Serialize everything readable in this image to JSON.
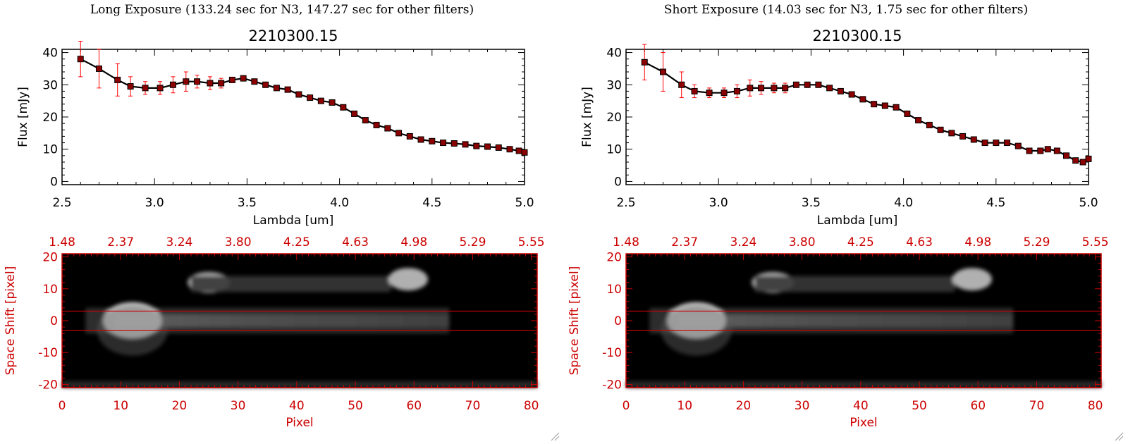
{
  "panels": [
    {
      "id": "left",
      "exposure_title": "Long Exposure (133.24 sec for N3, 147.27 sec for other filters)",
      "chart_data": {
        "type": "line",
        "title": "2210300.15",
        "xlabel": "Lambda [um]",
        "ylabel": "Flux [mJy]",
        "xlim": [
          2.5,
          5.0
        ],
        "ylim": [
          -1,
          41
        ],
        "xticks": [
          "2.5",
          "3.0",
          "3.5",
          "4.0",
          "4.5",
          "5.0"
        ],
        "yticks": [
          "0",
          "10",
          "20",
          "30",
          "40"
        ],
        "x": [
          2.6,
          2.7,
          2.8,
          2.87,
          2.95,
          3.03,
          3.1,
          3.17,
          3.23,
          3.3,
          3.36,
          3.42,
          3.48,
          3.54,
          3.6,
          3.66,
          3.72,
          3.78,
          3.84,
          3.9,
          3.96,
          4.02,
          4.08,
          4.14,
          4.2,
          4.26,
          4.32,
          4.38,
          4.44,
          4.5,
          4.56,
          4.62,
          4.68,
          4.74,
          4.8,
          4.86,
          4.92,
          4.97,
          5.0
        ],
        "y": [
          38,
          35,
          31.5,
          29.5,
          29,
          29,
          30,
          31,
          31,
          30.5,
          30.5,
          31.5,
          32,
          31,
          30,
          29,
          28.5,
          27,
          26,
          25,
          24.5,
          23,
          21,
          19,
          17.5,
          16.5,
          15,
          14,
          13,
          12.5,
          12,
          11.8,
          11.5,
          11,
          10.8,
          10.5,
          10,
          9.5,
          9
        ],
        "yerr": [
          5.5,
          6,
          5,
          3,
          2,
          2,
          2.5,
          3,
          2,
          2,
          1.5,
          0,
          0,
          0,
          0,
          0,
          0,
          0,
          0,
          0,
          0,
          0,
          0,
          0,
          0,
          0,
          0,
          0,
          0,
          0,
          0,
          0,
          0,
          0,
          0,
          0,
          0,
          0,
          0
        ],
        "error_color": "#ff0000",
        "marker_color": "#8b0000",
        "line_color": "#000000"
      },
      "image": {
        "top_axis_ticks": [
          "1.48",
          "2.37",
          "3.24",
          "3.80",
          "4.25",
          "4.63",
          "4.98",
          "5.29",
          "5.55"
        ],
        "bottom_axis_ticks": [
          "0",
          "10",
          "20",
          "30",
          "40",
          "50",
          "60",
          "70",
          "80"
        ],
        "left_axis_ticks": [
          "20",
          "10",
          "0",
          "-10",
          "-20"
        ],
        "xlabel": "Pixel",
        "ylabel": "Space Shift [pixel]",
        "xlim": [
          0,
          81
        ],
        "ylim": [
          -21,
          21
        ],
        "band_lines": [
          3,
          -3
        ],
        "axis_color": "#cc0000"
      }
    },
    {
      "id": "right",
      "exposure_title": "Short Exposure (14.03 sec for N3, 1.75 sec for other filters)",
      "chart_data": {
        "type": "line",
        "title": "2210300.15",
        "xlabel": "Lambda [um]",
        "ylabel": "Flux [mJy]",
        "xlim": [
          2.5,
          5.0
        ],
        "ylim": [
          -1,
          41
        ],
        "xticks": [
          "2.5",
          "3.0",
          "3.5",
          "4.0",
          "4.5",
          "5.0"
        ],
        "yticks": [
          "0",
          "10",
          "20",
          "30",
          "40"
        ],
        "x": [
          2.6,
          2.7,
          2.8,
          2.87,
          2.95,
          3.03,
          3.1,
          3.17,
          3.23,
          3.3,
          3.36,
          3.42,
          3.48,
          3.54,
          3.6,
          3.66,
          3.72,
          3.78,
          3.84,
          3.9,
          3.96,
          4.02,
          4.08,
          4.14,
          4.2,
          4.26,
          4.32,
          4.38,
          4.44,
          4.5,
          4.56,
          4.62,
          4.68,
          4.74,
          4.78,
          4.83,
          4.88,
          4.93,
          4.97,
          5.0
        ],
        "y": [
          37,
          34,
          30,
          28,
          27.5,
          27.5,
          28,
          29,
          29,
          29,
          29,
          30,
          30,
          30,
          29,
          28,
          27,
          25.5,
          24,
          23.5,
          23,
          21,
          19,
          17.5,
          16,
          15,
          14,
          13,
          12,
          12,
          12,
          11,
          9.5,
          9.5,
          10,
          9.5,
          8,
          6.5,
          6,
          7
        ],
        "yerr": [
          5.5,
          6,
          4,
          2,
          1.5,
          1.5,
          2,
          2.5,
          2,
          1.5,
          1.5,
          0,
          0,
          0,
          0,
          0,
          0,
          0,
          0,
          0,
          0,
          0,
          0,
          0,
          0,
          0,
          0,
          0,
          0,
          0,
          0,
          0,
          0,
          0,
          0,
          0,
          0,
          0,
          0,
          0
        ],
        "error_color": "#ff0000",
        "marker_color": "#8b0000",
        "line_color": "#000000"
      },
      "image": {
        "top_axis_ticks": [
          "1.48",
          "2.37",
          "3.24",
          "3.80",
          "4.25",
          "4.63",
          "4.98",
          "5.29",
          "5.55"
        ],
        "bottom_axis_ticks": [
          "0",
          "10",
          "20",
          "30",
          "40",
          "50",
          "60",
          "70",
          "80"
        ],
        "left_axis_ticks": [
          "20",
          "10",
          "0",
          "-10",
          "-20"
        ],
        "xlabel": "Pixel",
        "ylabel": "Space Shift [pixel]",
        "xlim": [
          0,
          81
        ],
        "ylim": [
          -21,
          21
        ],
        "band_lines": [
          3,
          -3
        ],
        "axis_color": "#cc0000"
      }
    }
  ]
}
